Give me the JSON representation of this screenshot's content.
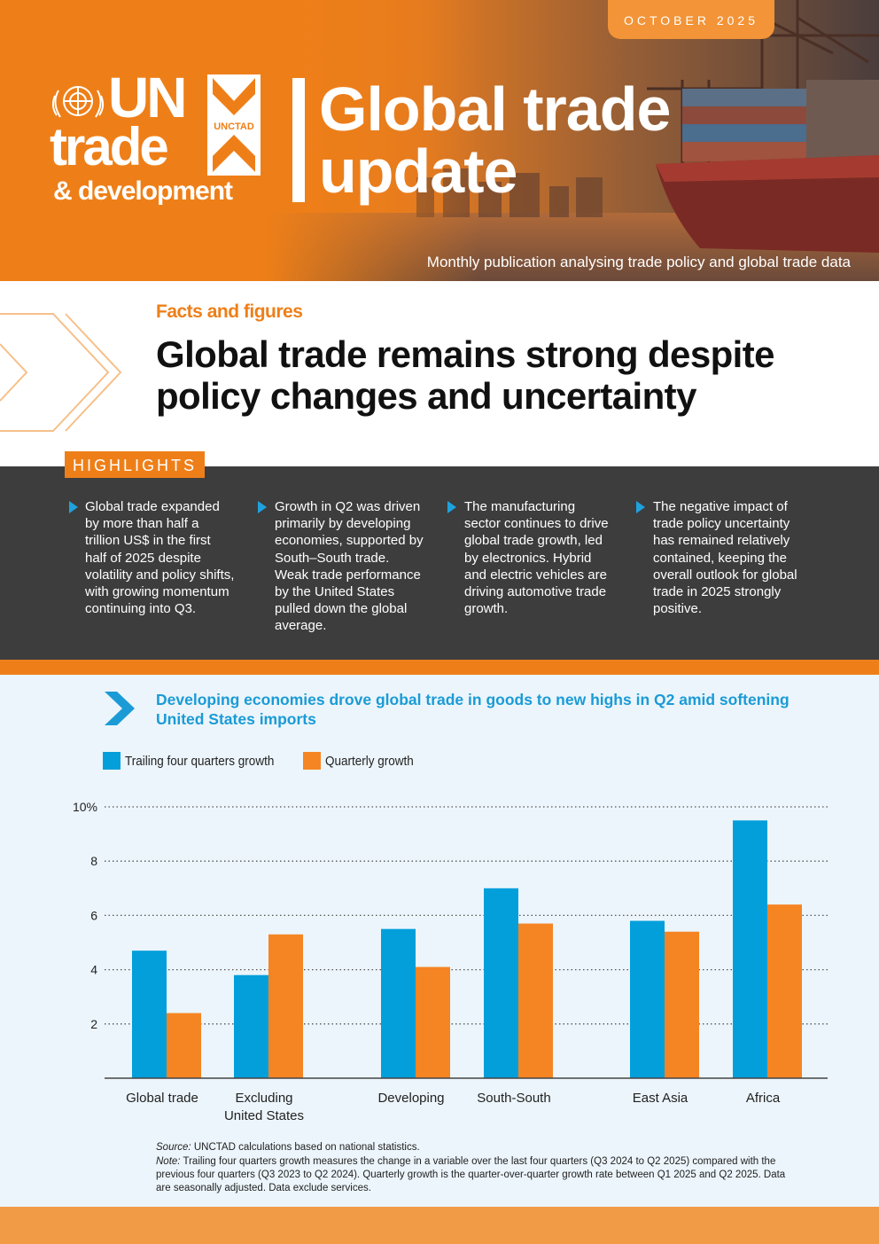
{
  "header": {
    "date": "OCTOBER 2025",
    "logo": {
      "line1": "UN",
      "line2": "trade",
      "line3": "& development",
      "mark": "UNCTAD"
    },
    "title_line1": "Global trade",
    "title_line2": "update",
    "subtitle": "Monthly publication analysing trade policy and global trade data",
    "colors": {
      "orange": "#ee7f18",
      "blue": "#1a9bd6",
      "dark": "#3d3d3d"
    }
  },
  "facts": {
    "label": "Facts and figures",
    "headline_line1": "Global trade remains strong despite",
    "headline_line2": "policy changes and uncertainty"
  },
  "highlights": {
    "tab": "HIGHLIGHTS",
    "items": [
      "Global trade expanded by more than half a trillion US$ in the first half of 2025 despite volatility and policy shifts, with growing momentum continuing into Q3.",
      "Growth in Q2 was driven primarily by developing economies, supported by South–South trade. Weak trade performance by the United States pulled down the global average.",
      "The manufacturing sector continues to drive global trade growth, led by electronics. Hybrid and electric vehicles are driving automotive trade growth.",
      "The negative impact of trade policy uncertainty has remained relatively contained, keeping the overall outlook for global trade in 2025 strongly positive."
    ]
  },
  "chart_data": {
    "type": "bar",
    "title": "Developing economies drove global trade in goods to new highs in Q2 amid softening United States imports",
    "categories": [
      "Global trade",
      "Excluding United States",
      "Developing",
      "South-South",
      "East Asia",
      "Africa"
    ],
    "category_lines": [
      [
        "Global trade"
      ],
      [
        "Excluding",
        "United States"
      ],
      [
        "Developing"
      ],
      [
        "South-South"
      ],
      [
        "East Asia"
      ],
      [
        "Africa"
      ]
    ],
    "series": [
      {
        "name": "Trailing four quarters growth",
        "color": "#039fdb",
        "values": [
          4.7,
          3.8,
          5.5,
          7.0,
          5.8,
          9.5
        ]
      },
      {
        "name": "Quarterly growth",
        "color": "#f58523",
        "values": [
          2.4,
          5.3,
          4.1,
          5.7,
          5.4,
          6.4
        ]
      }
    ],
    "ylim": [
      0,
      10
    ],
    "yticks": [
      2,
      4,
      6,
      8,
      10
    ],
    "ytick_labels": [
      "2",
      "4",
      "6",
      "8",
      "10%"
    ],
    "grid": true,
    "legend_position": "top-left"
  },
  "notes": {
    "source_label": "Source:",
    "source_text": "UNCTAD calculations based on national statistics.",
    "note_label": "Note:",
    "note_text": "Trailing four quarters growth measures the change in a variable over the last four quarters (Q3 2024 to Q2 2025) compared with the previous four quarters (Q3 2023 to Q2 2024). Quarterly growth is the quarter-over-quarter growth rate between Q1 2025 and Q2 2025. Data are seasonally adjusted. Data exclude services."
  }
}
